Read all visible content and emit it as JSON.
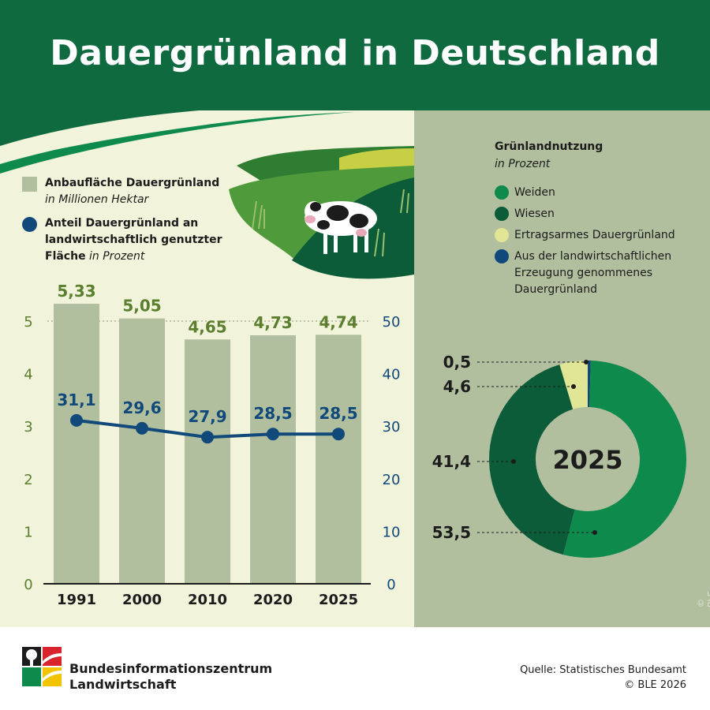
{
  "title": "Dauergrünland in Deutschland",
  "legend": {
    "bar_label": "Anbaufläche Dauergrünland",
    "bar_unit": "in Millionen Hektar",
    "line_label_1": "Anteil Dauergrünland an",
    "line_label_2": "landwirtschaftlich genutzter",
    "line_label_3": "Fläche",
    "line_unit": "in Prozent"
  },
  "chart_data": [
    {
      "type": "bar",
      "categories": [
        "1991",
        "2000",
        "2010",
        "2020",
        "2025"
      ],
      "series": [
        {
          "name": "Anbaufläche Dauergrünland",
          "values": [
            5.33,
            5.05,
            4.65,
            4.73,
            4.74
          ],
          "value_labels": [
            "5,33",
            "5,05",
            "4,65",
            "4,73",
            "4,74"
          ],
          "axis": "left"
        },
        {
          "name": "Anteil Dauergrünland an landwirtschaftlich genutzter Fläche",
          "type": "line",
          "values": [
            31.1,
            29.6,
            27.9,
            28.5,
            28.5
          ],
          "value_labels": [
            "31,1",
            "29,6",
            "27,9",
            "28,5",
            "28,5"
          ],
          "axis": "right"
        }
      ],
      "ylim_left": [
        0,
        5
      ],
      "yticks_left": [
        "0",
        "1",
        "2",
        "3",
        "4",
        "5"
      ],
      "ylim_right": [
        0,
        50
      ],
      "yticks_right": [
        "0",
        "10",
        "20",
        "30",
        "40",
        "50"
      ],
      "colors": {
        "bar": "#b1bf9e",
        "bar_label": "#5b7f2f",
        "line": "#114a7a",
        "axis_left": "#5b7f2f",
        "axis_right": "#114a7a"
      }
    },
    {
      "type": "pie",
      "center_label": "2025",
      "title": "Grünlandnutzung",
      "subtitle": "in Prozent",
      "slices": [
        {
          "name": "Aus der landwirtschaftlichen Erzeugung genommenes Dauergrünland",
          "value": 0.5,
          "label": "0,5",
          "color": "#114a7a"
        },
        {
          "name": "Weiden",
          "value": 53.5,
          "label": "53,5",
          "color": "#0e8a4c"
        },
        {
          "name": "Wiesen",
          "value": 41.4,
          "label": "41,4",
          "color": "#0c5c3a"
        },
        {
          "name": "Ertragsarmes Dauergrünland",
          "value": 4.6,
          "label": "4,6",
          "color": "#e1e696"
        }
      ]
    }
  ],
  "pie_legend": {
    "items": [
      {
        "label": "Weiden",
        "color": "#0e8a4c"
      },
      {
        "label": "Wiesen",
        "color": "#0c5c3a"
      },
      {
        "label": "Ertragsarmes Dauergrünland",
        "color": "#e1e696"
      },
      {
        "label": "Aus der landwirtschaftlichen Erzeugung genommenes Dauergrünland",
        "color": "#114a7a"
      }
    ]
  },
  "footer": {
    "org_line_1": "Bundesinformationszentrum",
    "org_line_2": "Landwirtschaft",
    "source": "Quelle: Statistisches Bundesamt",
    "copyright": "© BLE 2026",
    "vertical_copyright": "© BLE"
  }
}
